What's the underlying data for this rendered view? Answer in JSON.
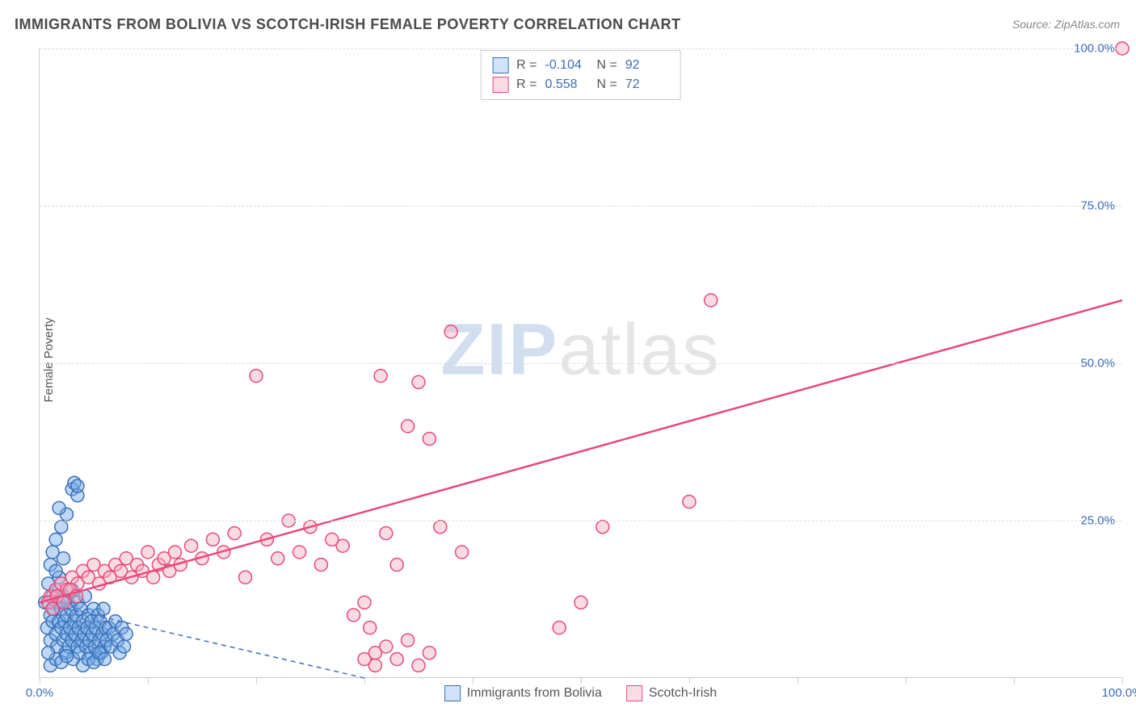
{
  "title": "IMMIGRANTS FROM BOLIVIA VS SCOTCH-IRISH FEMALE POVERTY CORRELATION CHART",
  "source": "Source: ZipAtlas.com",
  "ylabel": "Female Poverty",
  "watermark_z": "ZIP",
  "watermark_rest": "atlas",
  "chart": {
    "type": "scatter",
    "xlim": [
      0,
      100
    ],
    "ylim": [
      0,
      100
    ],
    "xtick_positions": [
      0,
      10,
      20,
      30,
      40,
      50,
      60,
      70,
      80,
      90,
      100
    ],
    "xtick_labels": {
      "0": "0.0%",
      "100": "100.0%"
    },
    "ytick_positions": [
      25,
      50,
      75,
      100
    ],
    "ytick_labels": {
      "25": "25.0%",
      "50": "50.0%",
      "75": "75.0%",
      "100": "100.0%"
    },
    "grid_color": "#dddddd",
    "background_color": "#ffffff",
    "axis_color": "#cccccc",
    "tick_label_color": "#3b6fb6",
    "label_fontsize": 15,
    "title_fontsize": 18,
    "point_radius": 8,
    "point_opacity": 0.45,
    "series": [
      {
        "name": "Immigrants from Bolivia",
        "fill_color": "#6fa8e8",
        "stroke_color": "#3b6fb6",
        "R": "-0.104",
        "N": "92",
        "trend": {
          "x1": 0,
          "y1": 12,
          "x2": 30,
          "y2": 0,
          "dashed": true,
          "color": "#3b6fb6",
          "width": 1.5
        },
        "points": [
          [
            0.5,
            12
          ],
          [
            0.7,
            8
          ],
          [
            0.8,
            15
          ],
          [
            1.0,
            10
          ],
          [
            1.0,
            6
          ],
          [
            1.2,
            9
          ],
          [
            1.2,
            13
          ],
          [
            1.3,
            11
          ],
          [
            1.5,
            7
          ],
          [
            1.5,
            14
          ],
          [
            1.6,
            5
          ],
          [
            1.7,
            12
          ],
          [
            1.8,
            9
          ],
          [
            1.8,
            16
          ],
          [
            2.0,
            8
          ],
          [
            2.0,
            11
          ],
          [
            2.2,
            6
          ],
          [
            2.2,
            13
          ],
          [
            2.3,
            9
          ],
          [
            2.4,
            4
          ],
          [
            2.5,
            10
          ],
          [
            2.5,
            7
          ],
          [
            2.6,
            12
          ],
          [
            2.7,
            5
          ],
          [
            2.8,
            8
          ],
          [
            2.9,
            11
          ],
          [
            3.0,
            6
          ],
          [
            3.0,
            14
          ],
          [
            3.1,
            3
          ],
          [
            3.2,
            9
          ],
          [
            3.3,
            7
          ],
          [
            3.4,
            10
          ],
          [
            3.5,
            5
          ],
          [
            3.5,
            12
          ],
          [
            3.6,
            8
          ],
          [
            3.7,
            4
          ],
          [
            3.8,
            11
          ],
          [
            3.9,
            6
          ],
          [
            4.0,
            9
          ],
          [
            4.1,
            7
          ],
          [
            4.2,
            13
          ],
          [
            4.3,
            5
          ],
          [
            4.4,
            8
          ],
          [
            4.5,
            10
          ],
          [
            4.6,
            6
          ],
          [
            4.7,
            4
          ],
          [
            4.8,
            9
          ],
          [
            4.9,
            7
          ],
          [
            5.0,
            11
          ],
          [
            5.1,
            5
          ],
          [
            5.2,
            8
          ],
          [
            5.3,
            3
          ],
          [
            5.4,
            10
          ],
          [
            5.5,
            6
          ],
          [
            5.6,
            9
          ],
          [
            5.7,
            4
          ],
          [
            5.8,
            7
          ],
          [
            5.9,
            11
          ],
          [
            6.0,
            5
          ],
          [
            6.1,
            8
          ],
          [
            1.0,
            18
          ],
          [
            1.2,
            20
          ],
          [
            1.5,
            22
          ],
          [
            2.0,
            24
          ],
          [
            2.5,
            26
          ],
          [
            1.8,
            27
          ],
          [
            3.0,
            30
          ],
          [
            3.2,
            31
          ],
          [
            3.5,
            29
          ],
          [
            3.5,
            30.5
          ],
          [
            1.0,
            2
          ],
          [
            1.5,
            3
          ],
          [
            2.0,
            2.5
          ],
          [
            2.5,
            3.5
          ],
          [
            0.8,
            4
          ],
          [
            4.0,
            2
          ],
          [
            4.5,
            3
          ],
          [
            5.0,
            2.5
          ],
          [
            5.5,
            4
          ],
          [
            6.0,
            3
          ],
          [
            6.2,
            6
          ],
          [
            6.4,
            8
          ],
          [
            6.6,
            5
          ],
          [
            6.8,
            7
          ],
          [
            7.0,
            9
          ],
          [
            7.2,
            6
          ],
          [
            7.4,
            4
          ],
          [
            7.6,
            8
          ],
          [
            7.8,
            5
          ],
          [
            8.0,
            7
          ],
          [
            1.5,
            17
          ],
          [
            2.2,
            19
          ]
        ]
      },
      {
        "name": "Scotch-Irish",
        "fill_color": "#f5aec0",
        "stroke_color": "#e84a7a",
        "R": "0.558",
        "N": "72",
        "trend": {
          "x1": 0,
          "y1": 12,
          "x2": 100,
          "y2": 60,
          "dashed": false,
          "color": "#e84a7a",
          "width": 2.5
        },
        "points": [
          [
            1.0,
            13
          ],
          [
            1.5,
            14
          ],
          [
            2.0,
            15
          ],
          [
            2.5,
            14
          ],
          [
            3.0,
            16
          ],
          [
            3.5,
            15
          ],
          [
            4.0,
            17
          ],
          [
            4.5,
            16
          ],
          [
            5.0,
            18
          ],
          [
            5.5,
            15
          ],
          [
            6.0,
            17
          ],
          [
            6.5,
            16
          ],
          [
            7.0,
            18
          ],
          [
            7.5,
            17
          ],
          [
            8.0,
            19
          ],
          [
            8.5,
            16
          ],
          [
            9.0,
            18
          ],
          [
            9.5,
            17
          ],
          [
            10.0,
            20
          ],
          [
            10.5,
            16
          ],
          [
            11.0,
            18
          ],
          [
            11.5,
            19
          ],
          [
            12.0,
            17
          ],
          [
            12.5,
            20
          ],
          [
            13.0,
            18
          ],
          [
            14.0,
            21
          ],
          [
            15.0,
            19
          ],
          [
            16.0,
            22
          ],
          [
            17.0,
            20
          ],
          [
            18.0,
            23
          ],
          [
            19.0,
            16
          ],
          [
            20.0,
            48
          ],
          [
            21.0,
            22
          ],
          [
            22.0,
            19
          ],
          [
            23.0,
            25
          ],
          [
            24.0,
            20
          ],
          [
            25.0,
            24
          ],
          [
            26.0,
            18
          ],
          [
            27.0,
            22
          ],
          [
            28.0,
            21
          ],
          [
            29.0,
            10
          ],
          [
            30.0,
            12
          ],
          [
            30.5,
            8
          ],
          [
            31.0,
            2
          ],
          [
            31.5,
            48
          ],
          [
            32.0,
            23
          ],
          [
            33.0,
            18
          ],
          [
            34.0,
            40
          ],
          [
            35.0,
            47
          ],
          [
            36.0,
            38
          ],
          [
            37.0,
            24
          ],
          [
            38.0,
            55
          ],
          [
            39.0,
            20
          ],
          [
            30.0,
            3
          ],
          [
            31.0,
            4
          ],
          [
            32.0,
            5
          ],
          [
            33.0,
            3
          ],
          [
            34.0,
            6
          ],
          [
            35.0,
            2
          ],
          [
            36.0,
            4
          ],
          [
            48.0,
            8
          ],
          [
            50.0,
            12
          ],
          [
            52.0,
            24
          ],
          [
            60.0,
            28
          ],
          [
            62.0,
            60
          ],
          [
            100.0,
            100
          ],
          [
            0.8,
            12
          ],
          [
            1.2,
            11
          ],
          [
            1.6,
            13
          ],
          [
            2.2,
            12
          ],
          [
            2.8,
            14
          ],
          [
            3.4,
            13
          ]
        ]
      }
    ]
  },
  "stats_box": {
    "rows": [
      {
        "swatch_fill": "#cfe4fa",
        "swatch_border": "#3b6fb6",
        "r_label": "R =",
        "r_val": "-0.104",
        "n_label": "N =",
        "n_val": "92"
      },
      {
        "swatch_fill": "#fbdce5",
        "swatch_border": "#e84a7a",
        "r_label": "R =",
        "r_val": "0.558",
        "n_label": "N =",
        "n_val": "72"
      }
    ]
  },
  "legend": {
    "items": [
      {
        "swatch_fill": "#cfe4fa",
        "swatch_border": "#3b6fb6",
        "label": "Immigrants from Bolivia"
      },
      {
        "swatch_fill": "#fbdce5",
        "swatch_border": "#e84a7a",
        "label": "Scotch-Irish"
      }
    ]
  }
}
